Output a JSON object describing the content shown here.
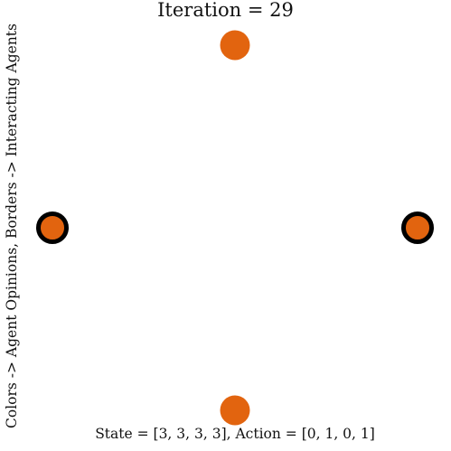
{
  "title": "Iteration = 29",
  "ylabel": "Colors -> Agent Opinions, Borders -> Interacting Agents",
  "caption": "State = [3, 3, 3, 3], Action = [0, 1, 0, 1]",
  "colors": {
    "opinion": "#e2640f",
    "border": "#000000"
  },
  "agents": [
    {
      "name": "agent-top",
      "state": 3,
      "interacting": false
    },
    {
      "name": "agent-left",
      "state": 3,
      "interacting": true
    },
    {
      "name": "agent-bottom",
      "state": 3,
      "interacting": false
    },
    {
      "name": "agent-right",
      "state": 3,
      "interacting": true
    }
  ]
}
